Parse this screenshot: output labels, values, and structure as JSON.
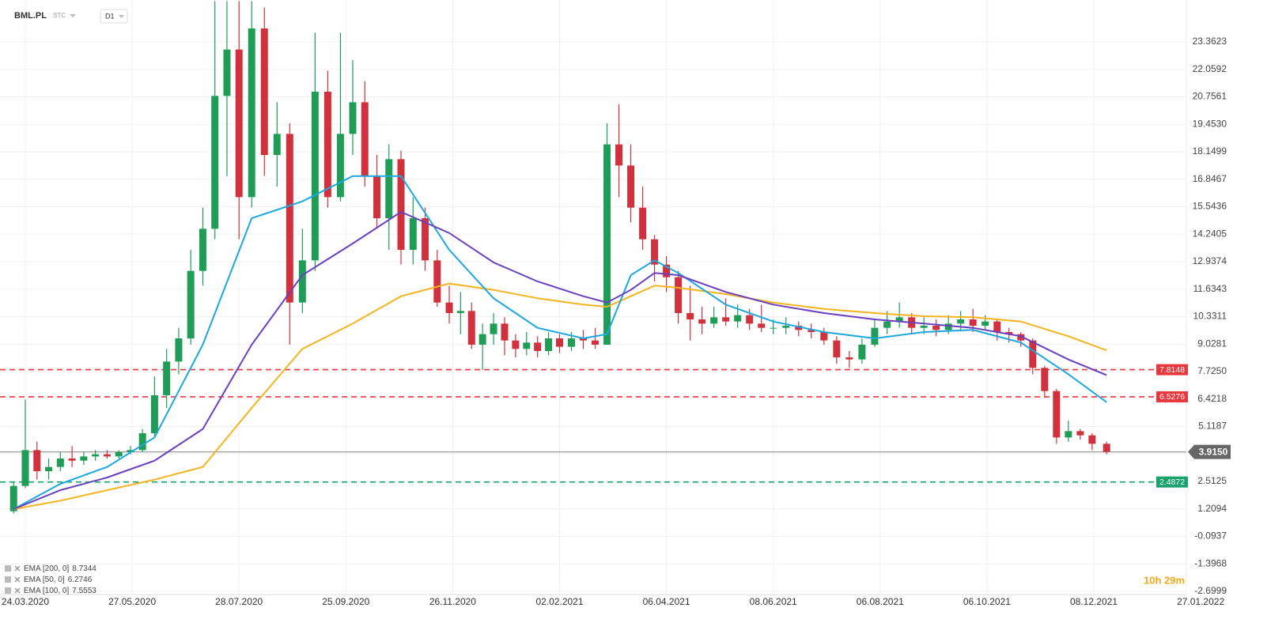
{
  "header": {
    "symbol": "BML.PL",
    "market": "STC",
    "interval": "D1"
  },
  "chart_data": {
    "type": "candlestick",
    "x": [
      "17.03.2020",
      "24.03.2020",
      "31.03.2020",
      "07.04.2020",
      "14.04.2020",
      "21.04.2020",
      "28.04.2020",
      "05.05.2020",
      "12.05.2020",
      "19.05.2020",
      "26.05.2020",
      "02.06.2020",
      "09.06.2020",
      "16.06.2020",
      "23.06.2020",
      "30.06.2020",
      "07.07.2020",
      "14.07.2020",
      "21.07.2020",
      "28.07.2020",
      "04.08.2020",
      "11.08.2020",
      "18.08.2020",
      "25.08.2020",
      "01.09.2020",
      "08.09.2020",
      "15.09.2020",
      "22.09.2020",
      "29.09.2020",
      "06.10.2020",
      "13.10.2020",
      "20.10.2020",
      "27.10.2020",
      "03.11.2020",
      "10.11.2020",
      "17.11.2020",
      "24.11.2020",
      "01.12.2020",
      "08.12.2020",
      "15.12.2020",
      "22.12.2020",
      "29.12.2020",
      "05.01.2021",
      "12.01.2021",
      "19.01.2021",
      "26.01.2021",
      "02.02.2021",
      "09.02.2021",
      "16.02.2021",
      "23.02.2021",
      "02.03.2021",
      "09.03.2021",
      "16.03.2021",
      "23.03.2021",
      "30.03.2021",
      "06.04.2021",
      "13.04.2021",
      "20.04.2021",
      "27.04.2021",
      "04.05.2021",
      "11.05.2021",
      "18.05.2021",
      "25.05.2021",
      "01.06.2021",
      "08.06.2021",
      "15.06.2021",
      "22.06.2021",
      "29.06.2021",
      "06.07.2021",
      "13.07.2021",
      "20.07.2021",
      "27.07.2021",
      "03.08.2021",
      "10.08.2021",
      "17.08.2021",
      "24.08.2021",
      "31.08.2021",
      "07.09.2021",
      "14.09.2021",
      "21.09.2021",
      "28.09.2021",
      "05.10.2021",
      "12.10.2021",
      "19.10.2021",
      "26.10.2021",
      "02.11.2021",
      "09.11.2021",
      "16.11.2021",
      "23.11.2021",
      "30.11.2021",
      "07.12.2021",
      "14.12.2021"
    ],
    "open": [
      1.1,
      2.3,
      4.0,
      3.0,
      3.2,
      3.6,
      3.5,
      3.7,
      3.8,
      3.7,
      3.9,
      4.0,
      4.8,
      6.6,
      8.2,
      9.3,
      12.5,
      14.5,
      20.8,
      23.0,
      16.0,
      24.0,
      18.0,
      19.0,
      11.0,
      13.0,
      21.0,
      16.0,
      19.0,
      20.5,
      17.0,
      15.0,
      17.8,
      13.5,
      15.0,
      13.0,
      11.0,
      10.5,
      10.6,
      9.0,
      9.5,
      10.0,
      9.2,
      8.8,
      9.1,
      8.7,
      9.3,
      8.9,
      9.3,
      9.2,
      9.0,
      18.5,
      17.5,
      15.5,
      14.0,
      12.8,
      12.2,
      10.5,
      10.2,
      10.0,
      10.3,
      10.1,
      10.4,
      10.0,
      9.8,
      9.8,
      9.9,
      9.7,
      9.6,
      9.2,
      8.4,
      8.3,
      9.0,
      9.8,
      10.1,
      10.3,
      9.8,
      9.9,
      9.7,
      10.0,
      10.2,
      9.9,
      10.1,
      9.6,
      9.5,
      9.2,
      7.9,
      6.8,
      4.6,
      4.9,
      4.7,
      4.3
    ],
    "high": [
      2.5,
      6.4,
      4.4,
      3.6,
      3.9,
      4.2,
      3.9,
      4.0,
      4.0,
      4.0,
      4.2,
      5.0,
      7.5,
      8.8,
      9.8,
      13.5,
      15.5,
      25.3,
      25.3,
      25.3,
      25.3,
      25.0,
      20.5,
      19.5,
      14.5,
      23.8,
      22.0,
      23.8,
      22.5,
      21.5,
      18.0,
      18.5,
      18.2,
      16.0,
      15.5,
      13.5,
      11.8,
      11.5,
      11.0,
      10.0,
      10.5,
      10.3,
      9.5,
      9.6,
      9.4,
      9.6,
      9.5,
      9.6,
      9.7,
      9.8,
      19.5,
      20.4,
      18.5,
      16.5,
      14.2,
      13.2,
      12.5,
      11.8,
      10.8,
      10.8,
      11.2,
      10.9,
      10.7,
      10.9,
      10.2,
      10.3,
      10.1,
      10.0,
      9.8,
      9.4,
      8.7,
      9.3,
      10.2,
      10.6,
      11.0,
      10.5,
      10.3,
      10.2,
      10.4,
      10.6,
      10.7,
      10.4,
      10.2,
      9.8,
      9.6,
      9.3,
      8.0,
      6.9,
      5.4,
      5.0,
      4.8,
      4.4
    ],
    "low": [
      1.0,
      2.2,
      2.6,
      2.6,
      3.0,
      3.2,
      3.3,
      3.5,
      3.6,
      3.6,
      3.8,
      3.9,
      4.6,
      6.0,
      7.6,
      9.0,
      11.8,
      14.0,
      17.0,
      14.0,
      15.5,
      17.0,
      16.5,
      9.0,
      10.5,
      12.5,
      15.5,
      15.8,
      18.0,
      16.5,
      14.5,
      13.5,
      12.8,
      12.8,
      12.5,
      10.8,
      10.0,
      9.5,
      8.8,
      7.8,
      9.0,
      8.5,
      8.4,
      8.5,
      8.4,
      8.5,
      8.6,
      8.7,
      8.8,
      8.8,
      9.0,
      16.0,
      14.8,
      13.5,
      12.0,
      11.5,
      10.0,
      9.2,
      9.5,
      9.8,
      9.9,
      9.8,
      9.7,
      9.6,
      9.5,
      9.5,
      9.4,
      9.3,
      9.0,
      8.1,
      7.9,
      8.1,
      8.9,
      9.5,
      9.8,
      9.5,
      9.5,
      9.4,
      9.5,
      9.7,
      9.6,
      9.7,
      9.2,
      9.1,
      8.9,
      7.6,
      6.5,
      4.3,
      4.4,
      4.5,
      4.0,
      3.8
    ],
    "close": [
      2.3,
      4.0,
      3.0,
      3.2,
      3.6,
      3.5,
      3.7,
      3.8,
      3.7,
      3.9,
      4.0,
      4.8,
      6.6,
      8.2,
      9.3,
      12.5,
      14.5,
      20.8,
      23.0,
      16.0,
      24.0,
      18.0,
      19.0,
      11.0,
      13.0,
      21.0,
      16.0,
      19.0,
      20.5,
      17.0,
      15.0,
      17.8,
      13.5,
      15.0,
      13.0,
      11.0,
      10.5,
      10.6,
      9.0,
      9.5,
      10.0,
      9.2,
      8.8,
      9.1,
      8.7,
      9.3,
      8.9,
      9.3,
      9.2,
      9.0,
      18.5,
      17.5,
      15.5,
      14.0,
      12.8,
      12.2,
      10.5,
      10.2,
      10.0,
      10.3,
      10.1,
      10.4,
      10.0,
      9.8,
      9.8,
      9.9,
      9.7,
      9.6,
      9.2,
      8.4,
      8.3,
      9.0,
      9.8,
      10.1,
      10.3,
      9.8,
      9.9,
      9.7,
      10.0,
      10.2,
      9.9,
      10.1,
      9.6,
      9.5,
      9.2,
      7.9,
      6.8,
      4.6,
      4.9,
      4.7,
      4.3,
      3.915
    ],
    "colors": {
      "up": "#1f9d57",
      "down": "#d0313d"
    },
    "ylim": [
      -2.85,
      25.35
    ],
    "yticks": [
      -2.6999,
      -1.3968,
      -0.0937,
      1.2094,
      2.5125,
      3.8156,
      5.1187,
      6.4218,
      {
        "value": 7.725,
        "label": "7.7250"
      },
      9.0281,
      10.3311,
      11.6343,
      12.9374,
      14.2405,
      15.5436,
      16.8467,
      18.1499,
      {
        "value": 19.453,
        "label": "19.4530"
      },
      20.7561,
      22.0592,
      23.3623
    ],
    "xticks": [
      "24.03.2020",
      "27.05.2020",
      "28.07.2020",
      "25.09.2020",
      "26.11.2020",
      "02.02.2021",
      "06.04.2021",
      "08.06.2021",
      "06.08.2021",
      "06.10.2021",
      "08.12.2021",
      "27.01.2022"
    ],
    "grid": true,
    "indicators": [
      {
        "name": "EMA [200, 0]",
        "color": "#f5b41f",
        "x": [
          "17.03.2020",
          "14.04.2020",
          "12.05.2020",
          "09.06.2020",
          "07.07.2020",
          "04.08.2020",
          "01.09.2020",
          "29.09.2020",
          "27.10.2020",
          "24.11.2020",
          "22.12.2020",
          "19.01.2021",
          "16.02.2021",
          "02.03.2021",
          "16.03.2021",
          "30.03.2021",
          "13.04.2021",
          "11.05.2021",
          "08.06.2021",
          "06.07.2021",
          "03.08.2021",
          "31.08.2021",
          "28.09.2021",
          "26.10.2021",
          "23.11.2021",
          "14.12.2021"
        ],
        "values": [
          1.2,
          1.6,
          2.1,
          2.6,
          3.2,
          6.0,
          8.8,
          10.0,
          11.3,
          11.9,
          11.6,
          11.2,
          10.9,
          10.8,
          11.3,
          11.8,
          11.7,
          11.4,
          11.0,
          10.7,
          10.5,
          10.35,
          10.3,
          10.1,
          9.4,
          8.7344
        ]
      },
      {
        "name": "EMA [50, 0]",
        "color": "#1ba8e0",
        "x": [
          "17.03.2020",
          "14.04.2020",
          "12.05.2020",
          "09.06.2020",
          "07.07.2020",
          "04.08.2020",
          "01.09.2020",
          "29.09.2020",
          "27.10.2020",
          "24.11.2020",
          "22.12.2020",
          "19.01.2021",
          "16.02.2021",
          "02.03.2021",
          "16.03.2021",
          "30.03.2021",
          "13.04.2021",
          "11.05.2021",
          "08.06.2021",
          "06.07.2021",
          "03.08.2021",
          "31.08.2021",
          "28.09.2021",
          "26.10.2021",
          "23.11.2021",
          "14.12.2021"
        ],
        "values": [
          1.2,
          2.4,
          3.2,
          4.6,
          9.0,
          15.0,
          15.8,
          17.0,
          17.0,
          13.5,
          11.2,
          9.8,
          9.3,
          9.5,
          12.3,
          13.0,
          12.4,
          10.9,
          10.1,
          9.6,
          9.3,
          9.6,
          9.7,
          9.1,
          7.6,
          6.2746
        ]
      },
      {
        "name": "EMA [100, 0]",
        "color": "#6a3fc0",
        "x": [
          "17.03.2020",
          "14.04.2020",
          "12.05.2020",
          "09.06.2020",
          "07.07.2020",
          "04.08.2020",
          "01.09.2020",
          "29.09.2020",
          "27.10.2020",
          "24.11.2020",
          "22.12.2020",
          "19.01.2021",
          "16.02.2021",
          "02.03.2021",
          "16.03.2021",
          "30.03.2021",
          "13.04.2021",
          "11.05.2021",
          "08.06.2021",
          "06.07.2021",
          "03.08.2021",
          "31.08.2021",
          "28.09.2021",
          "26.10.2021",
          "23.11.2021",
          "14.12.2021"
        ],
        "values": [
          1.2,
          2.1,
          2.7,
          3.5,
          5.0,
          9.0,
          12.3,
          13.8,
          15.3,
          14.3,
          12.9,
          12.0,
          11.3,
          11.0,
          11.6,
          12.4,
          12.3,
          11.5,
          10.9,
          10.5,
          10.2,
          10.0,
          9.8,
          9.4,
          8.3,
          7.5553
        ]
      }
    ],
    "levels": [
      {
        "value": 7.8148,
        "color": "#e8383d"
      },
      {
        "value": 6.5276,
        "color": "#e8383d"
      },
      {
        "value": 2.4872,
        "color": "#17a36b"
      }
    ],
    "last_price": {
      "value": 3.915,
      "label": "3.9150"
    },
    "countdown": "10h 29m"
  }
}
